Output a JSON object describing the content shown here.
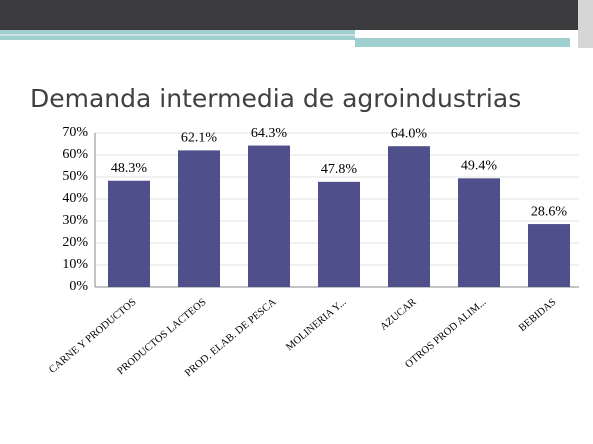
{
  "chart_data": {
    "type": "bar",
    "title": "Demanda intermedia de agroindustrias",
    "categories": [
      "CARNE Y PRODUCTOS",
      "PRODUCTOS LACTEOS",
      "PROD. ELAB. DE PESCA",
      "MOLINERIA Y...",
      "AZUCAR",
      "OTROS PROD ALIM...",
      "BEBIDAS"
    ],
    "values": [
      48.3,
      62.1,
      64.3,
      47.8,
      64.0,
      49.4,
      28.6
    ],
    "value_labels": [
      "48.3%",
      "62.1%",
      "64.3%",
      "47.8%",
      "64.0%",
      "49.4%",
      "28.6%"
    ],
    "color": "#4e4f8b",
    "ylim": [
      0,
      70
    ],
    "yticks": [
      {
        "value": 0,
        "label": "0%"
      },
      {
        "value": 10,
        "label": "10%"
      },
      {
        "value": 20,
        "label": "20%"
      },
      {
        "value": 30,
        "label": "30%"
      },
      {
        "value": 40,
        "label": "40%"
      },
      {
        "value": 50,
        "label": "50%"
      },
      {
        "value": 60,
        "label": "60%"
      },
      {
        "value": 70,
        "label": "70%"
      }
    ],
    "grid": true
  }
}
